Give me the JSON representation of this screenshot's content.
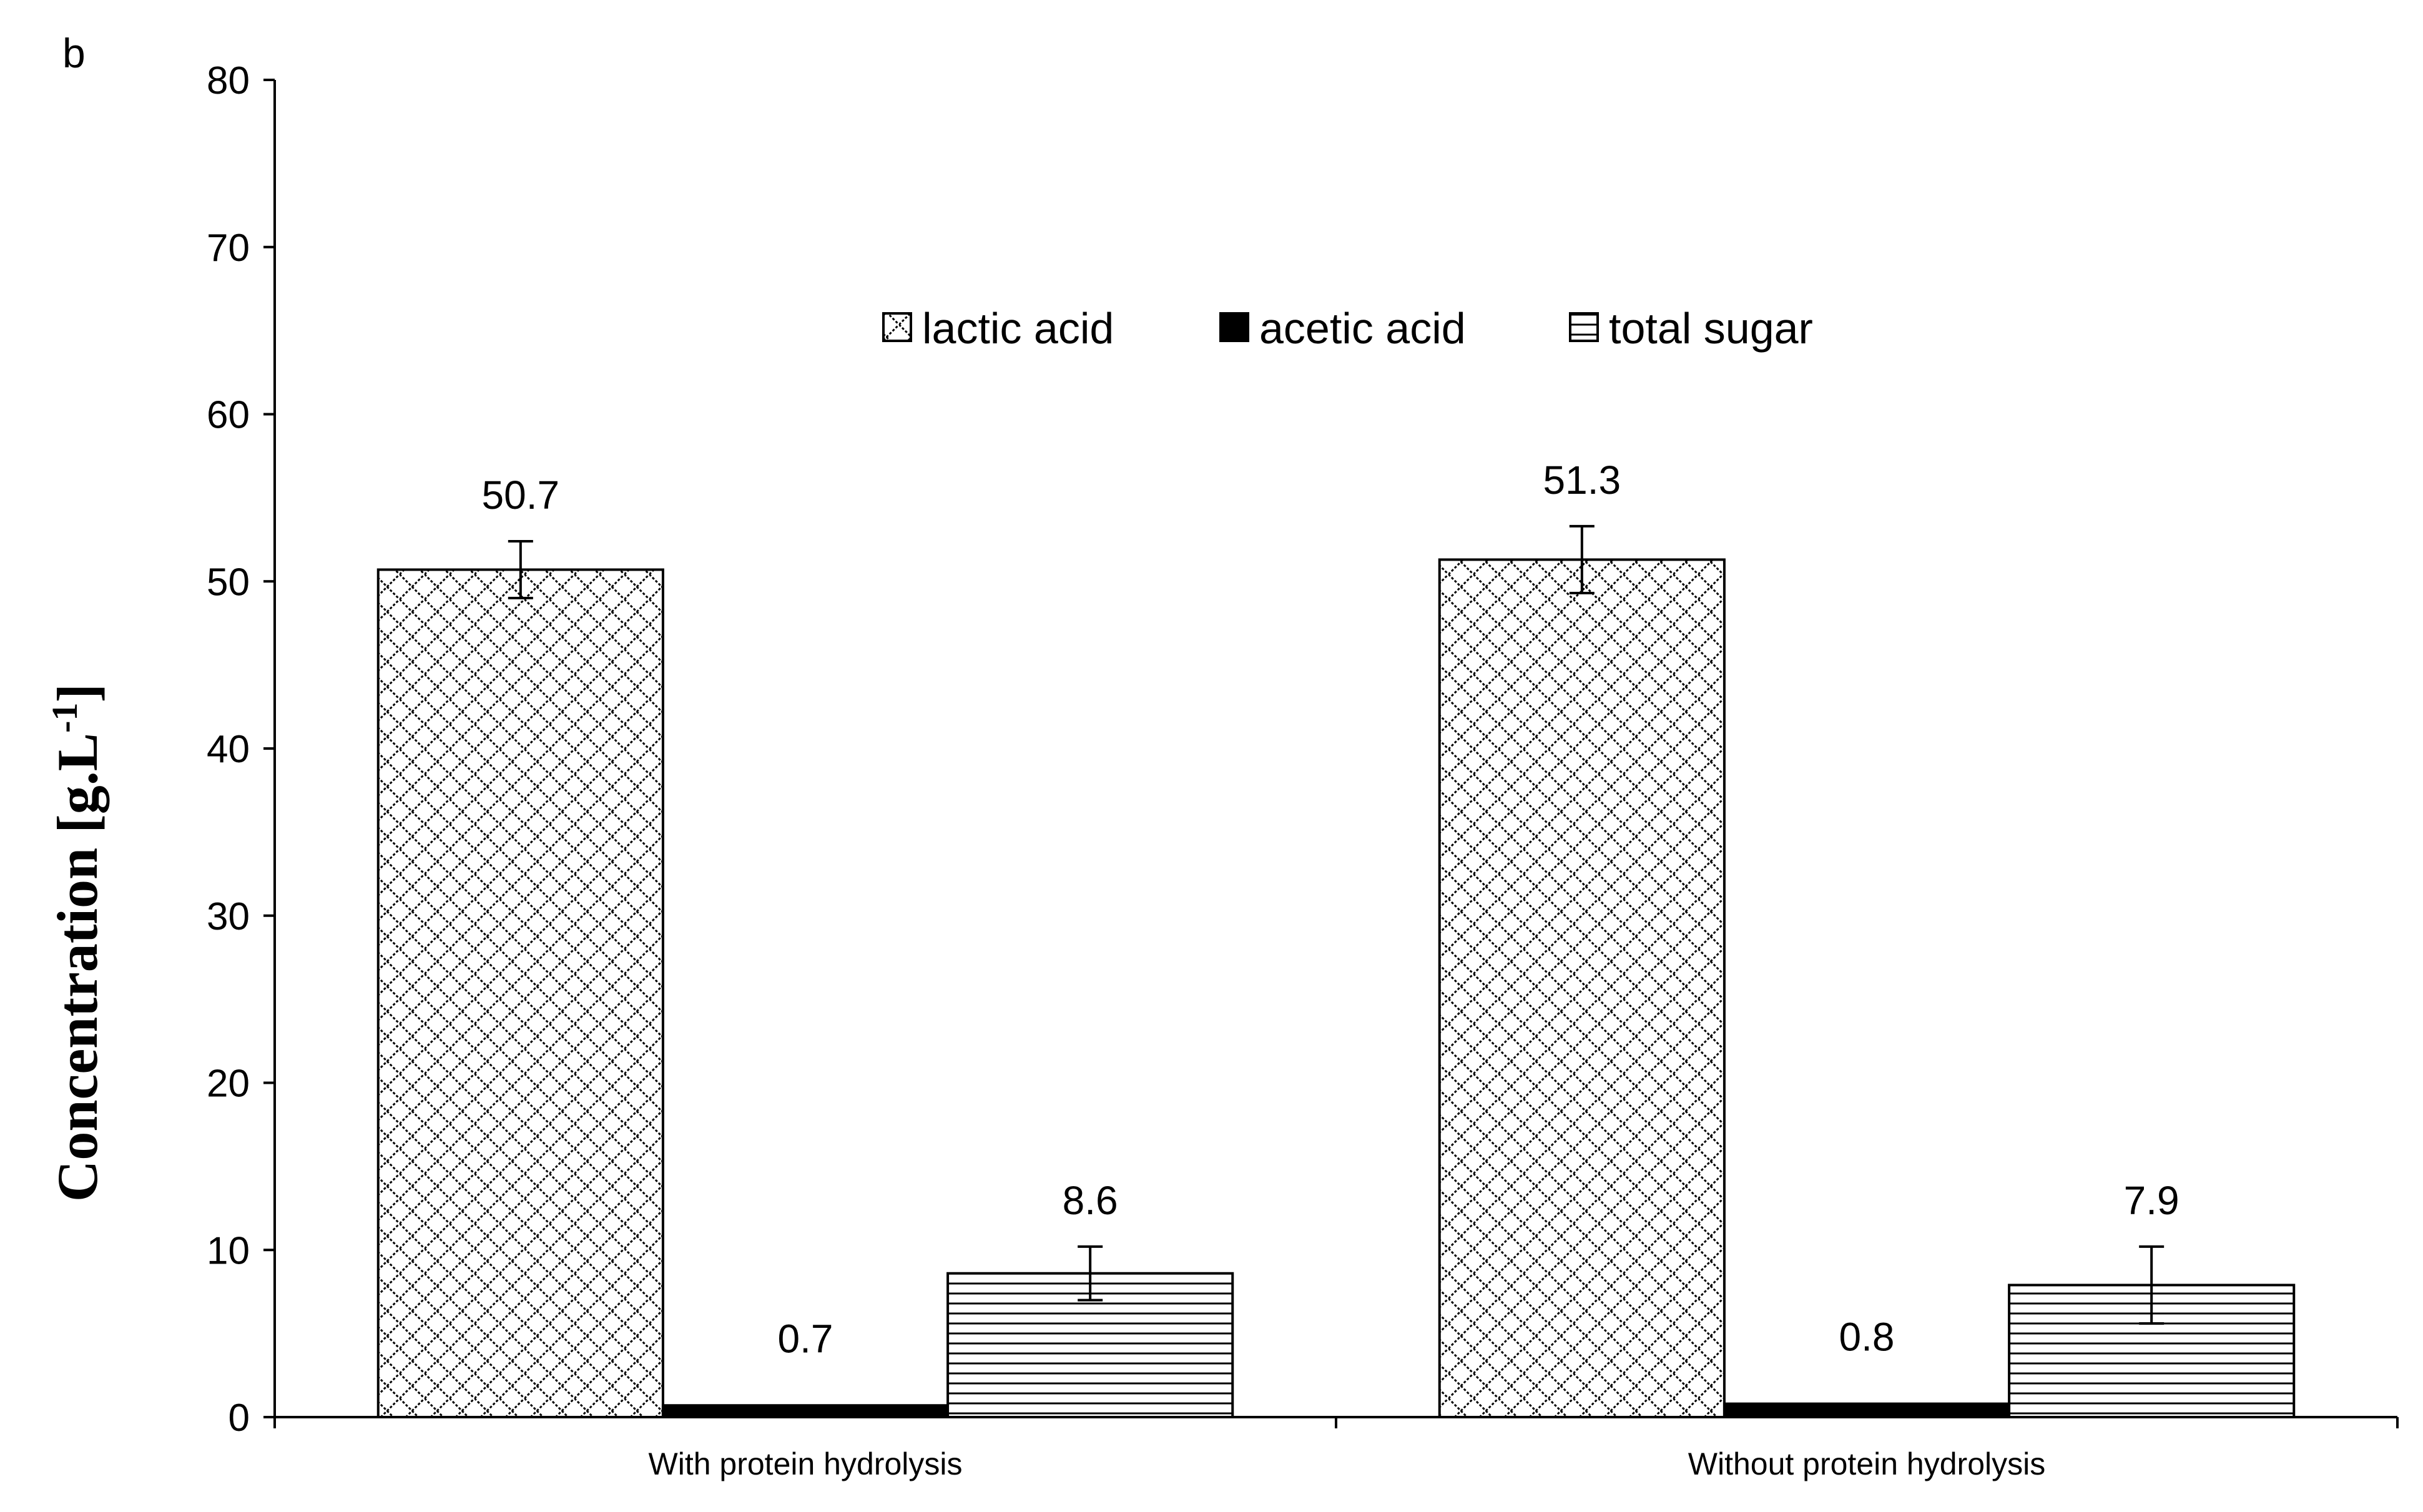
{
  "panel_label": "b",
  "chart_data": {
    "type": "bar",
    "categories": [
      "With protein hydrolysis",
      "Without protein hydrolysis"
    ],
    "series": [
      {
        "name": "lactic acid",
        "values": [
          50.7,
          51.3
        ],
        "errors": [
          1.7,
          2.0
        ],
        "labels": [
          "50.7",
          "51.3"
        ],
        "pattern": "crosshatch"
      },
      {
        "name": "acetic acid",
        "values": [
          0.7,
          0.8
        ],
        "errors": [
          0.0,
          0.0
        ],
        "labels": [
          "0.7",
          "0.8"
        ],
        "pattern": "solid"
      },
      {
        "name": "total sugar",
        "values": [
          8.6,
          7.9
        ],
        "errors": [
          1.6,
          2.3
        ],
        "labels": [
          "8.6",
          "7.9"
        ],
        "pattern": "horizontal-lines"
      }
    ],
    "ylabel": "Concentration [g.L-1]",
    "ylabel_parts": {
      "main": "Concentration [g.L",
      "sup": "-1",
      "close": "]"
    },
    "ylim": [
      0,
      80
    ],
    "yticks": [
      "0",
      "10",
      "20",
      "30",
      "40",
      "50",
      "60",
      "70",
      "80"
    ],
    "grid": false,
    "legend_position": "top-center"
  }
}
